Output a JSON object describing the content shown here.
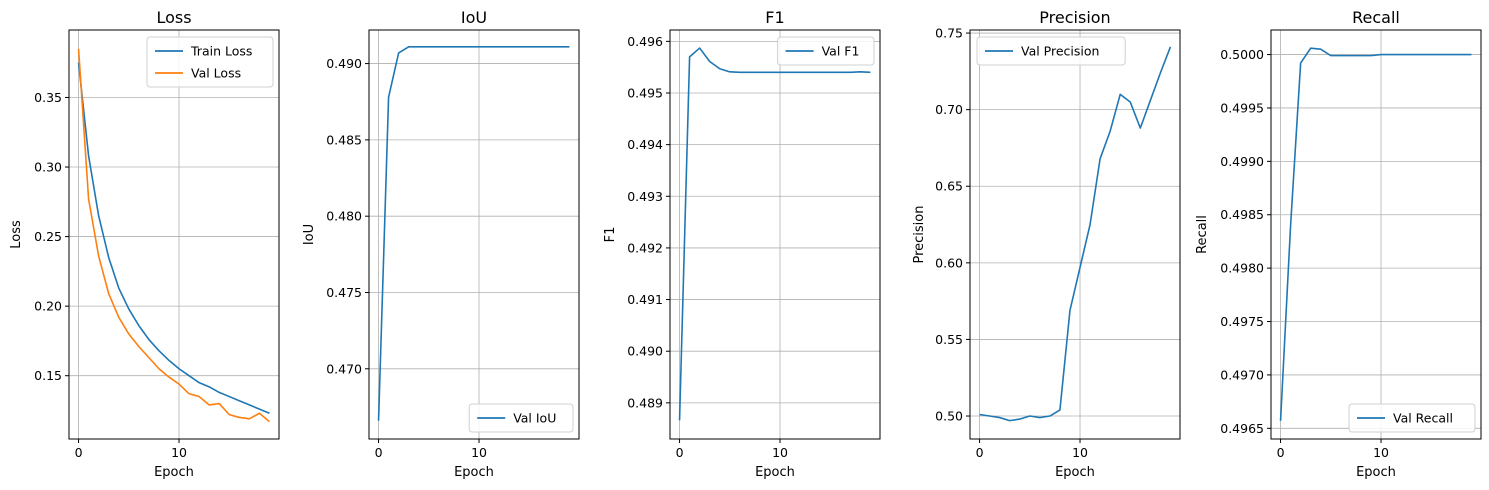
{
  "chart_data": [
    {
      "type": "line",
      "title": "Loss",
      "xlabel": "Epoch",
      "ylabel": "Loss",
      "xlim": [
        -0.95,
        19.95
      ],
      "ylim": [
        0.1045,
        0.3985
      ],
      "xticks": [
        0,
        10
      ],
      "yticks": [
        0.15,
        0.2,
        0.25,
        0.3,
        0.35
      ],
      "ytick_labels": [
        "0.15",
        "0.20",
        "0.25",
        "0.30",
        "0.35"
      ],
      "grid": true,
      "legend": "top-right",
      "x": [
        0,
        1,
        2,
        3,
        4,
        5,
        6,
        7,
        8,
        9,
        10,
        11,
        12,
        13,
        14,
        15,
        16,
        17,
        18,
        19
      ],
      "series": [
        {
          "name": "Train Loss",
          "color": "#1f77b4",
          "values": [
            0.375,
            0.308,
            0.265,
            0.235,
            0.213,
            0.198,
            0.186,
            0.176,
            0.168,
            0.161,
            0.155,
            0.15,
            0.145,
            0.142,
            0.138,
            0.135,
            0.132,
            0.129,
            0.126,
            0.123
          ]
        },
        {
          "name": "Val Loss",
          "color": "#ff7f0e",
          "values": [
            0.385,
            0.277,
            0.236,
            0.209,
            0.192,
            0.18,
            0.171,
            0.163,
            0.155,
            0.149,
            0.144,
            0.137,
            0.135,
            0.129,
            0.13,
            0.122,
            0.12,
            0.119,
            0.123,
            0.117
          ]
        }
      ]
    },
    {
      "type": "line",
      "title": "IoU",
      "xlabel": "Epoch",
      "ylabel": "IoU",
      "xlim": [
        -0.95,
        19.95
      ],
      "ylim": [
        0.4654,
        0.4922
      ],
      "xticks": [
        0,
        10
      ],
      "yticks": [
        0.47,
        0.475,
        0.48,
        0.485,
        0.49
      ],
      "ytick_labels": [
        "0.470",
        "0.475",
        "0.480",
        "0.485",
        "0.490"
      ],
      "grid": true,
      "legend": "bottom-right",
      "x": [
        0,
        1,
        2,
        3,
        4,
        5,
        6,
        7,
        8,
        9,
        10,
        11,
        12,
        13,
        14,
        15,
        16,
        17,
        18,
        19
      ],
      "series": [
        {
          "name": "Val IoU",
          "color": "#1f77b4",
          "values": [
            0.4666,
            0.4878,
            0.4907,
            0.4911,
            0.4911,
            0.4911,
            0.4911,
            0.4911,
            0.4911,
            0.4911,
            0.4911,
            0.4911,
            0.4911,
            0.4911,
            0.4911,
            0.4911,
            0.4911,
            0.4911,
            0.4911,
            0.4911
          ]
        }
      ]
    },
    {
      "type": "line",
      "title": "F1",
      "xlabel": "Epoch",
      "ylabel": "F1",
      "xlim": [
        -0.95,
        19.95
      ],
      "ylim": [
        0.4883,
        0.49622
      ],
      "xticks": [
        0,
        10
      ],
      "yticks": [
        0.489,
        0.49,
        0.491,
        0.492,
        0.493,
        0.494,
        0.495,
        0.496
      ],
      "ytick_labels": [
        "0.489",
        "0.490",
        "0.491",
        "0.492",
        "0.493",
        "0.494",
        "0.495",
        "0.496"
      ],
      "grid": true,
      "legend": "top-right",
      "x": [
        0,
        1,
        2,
        3,
        4,
        5,
        6,
        7,
        8,
        9,
        10,
        11,
        12,
        13,
        14,
        15,
        16,
        17,
        18,
        19
      ],
      "series": [
        {
          "name": "Val F1",
          "color": "#1f77b4",
          "values": [
            0.48866,
            0.4957,
            0.49587,
            0.49561,
            0.49547,
            0.49541,
            0.4954,
            0.4954,
            0.4954,
            0.4954,
            0.4954,
            0.4954,
            0.4954,
            0.4954,
            0.4954,
            0.4954,
            0.4954,
            0.4954,
            0.49541,
            0.4954
          ]
        }
      ]
    },
    {
      "type": "line",
      "title": "Precision",
      "xlabel": "Epoch",
      "ylabel": "Precision",
      "xlim": [
        -0.95,
        19.95
      ],
      "ylim": [
        0.485,
        0.752
      ],
      "xticks": [
        0,
        10
      ],
      "yticks": [
        0.5,
        0.55,
        0.6,
        0.65,
        0.7,
        0.75
      ],
      "ytick_labels": [
        "0.50",
        "0.55",
        "0.60",
        "0.65",
        "0.70",
        "0.75"
      ],
      "grid": true,
      "legend": "top-left",
      "x": [
        0,
        1,
        2,
        3,
        4,
        5,
        6,
        7,
        8,
        9,
        10,
        11,
        12,
        13,
        14,
        15,
        16,
        17,
        18,
        19
      ],
      "series": [
        {
          "name": "Val Precision",
          "color": "#1f77b4",
          "values": [
            0.501,
            0.5,
            0.499,
            0.497,
            0.498,
            0.5,
            0.499,
            0.5,
            0.504,
            0.569,
            0.597,
            0.625,
            0.668,
            0.686,
            0.71,
            0.705,
            0.688,
            0.706,
            0.724,
            0.741
          ]
        }
      ]
    },
    {
      "type": "line",
      "title": "Recall",
      "xlabel": "Epoch",
      "ylabel": "Recall",
      "xlim": [
        -0.95,
        19.95
      ],
      "ylim": [
        0.4964,
        0.50023
      ],
      "xticks": [
        0,
        10
      ],
      "yticks": [
        0.4965,
        0.497,
        0.4975,
        0.498,
        0.4985,
        0.499,
        0.4995,
        0.5
      ],
      "ytick_labels": [
        "0.4965",
        "0.4970",
        "0.4975",
        "0.4980",
        "0.4985",
        "0.4990",
        "0.4995",
        "0.5000"
      ],
      "grid": true,
      "legend": "bottom-right",
      "x": [
        0,
        1,
        2,
        3,
        4,
        5,
        6,
        7,
        8,
        9,
        10,
        11,
        12,
        13,
        14,
        15,
        16,
        17,
        18,
        19
      ],
      "series": [
        {
          "name": "Val Recall",
          "color": "#1f77b4",
          "values": [
            0.49657,
            0.4984,
            0.49992,
            0.50006,
            0.50005,
            0.49999,
            0.49999,
            0.49999,
            0.49999,
            0.49999,
            0.5,
            0.5,
            0.5,
            0.5,
            0.5,
            0.5,
            0.5,
            0.5,
            0.5,
            0.5
          ]
        }
      ]
    }
  ]
}
